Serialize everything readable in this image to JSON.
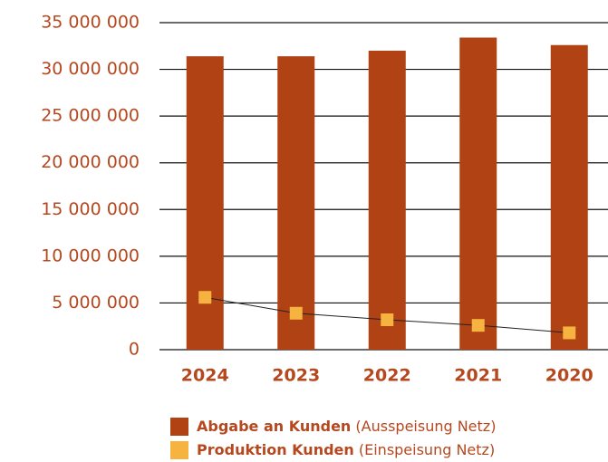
{
  "chart_data": {
    "type": "bar",
    "categories": [
      "2024",
      "2023",
      "2022",
      "2021",
      "2020"
    ],
    "series": [
      {
        "name": "Abgabe an Kunden",
        "description": "(Ausspeisung Netz)",
        "type": "bar",
        "color": "#b04213",
        "values": [
          31400000,
          31400000,
          32000000,
          33400000,
          32600000
        ]
      },
      {
        "name": "Produktion Kunden",
        "description": "(Einspeisung Netz)",
        "type": "line",
        "color": "#f7b33f",
        "values": [
          5600000,
          3900000,
          3200000,
          2600000,
          1800000
        ]
      }
    ],
    "ylim": [
      0,
      35000000
    ],
    "yticks": [
      0,
      {
        "value": 5000000,
        "label": "5 000 000"
      },
      {
        "value": 10000000,
        "label": "10 000 000"
      },
      {
        "value": 15000000,
        "label": "15 000 000"
      },
      {
        "value": 20000000,
        "label": "20 000 000"
      },
      {
        "value": 25000000,
        "label": "25 000 000"
      },
      {
        "value": 30000000,
        "label": "30 000 000"
      },
      {
        "value": 35000000,
        "label": "35 000 000"
      }
    ],
    "grid": true
  }
}
